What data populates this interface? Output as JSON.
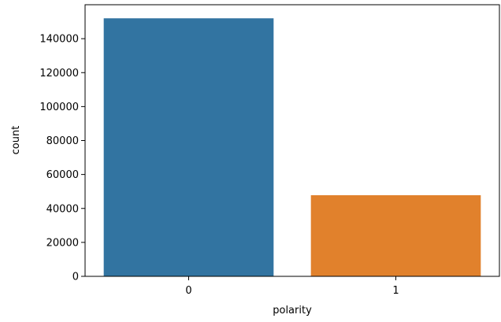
{
  "chart_data": {
    "type": "bar",
    "categories": [
      "0",
      "1"
    ],
    "values": [
      152000,
      47800
    ],
    "colors": [
      "#3274a1",
      "#e1812c"
    ],
    "xlabel": "polarity",
    "ylabel": "count",
    "ylim": [
      0,
      160000
    ],
    "yticks": [
      "0",
      "20000",
      "40000",
      "60000",
      "80000",
      "100000",
      "120000",
      "140000"
    ],
    "grid": false,
    "legend": false
  }
}
